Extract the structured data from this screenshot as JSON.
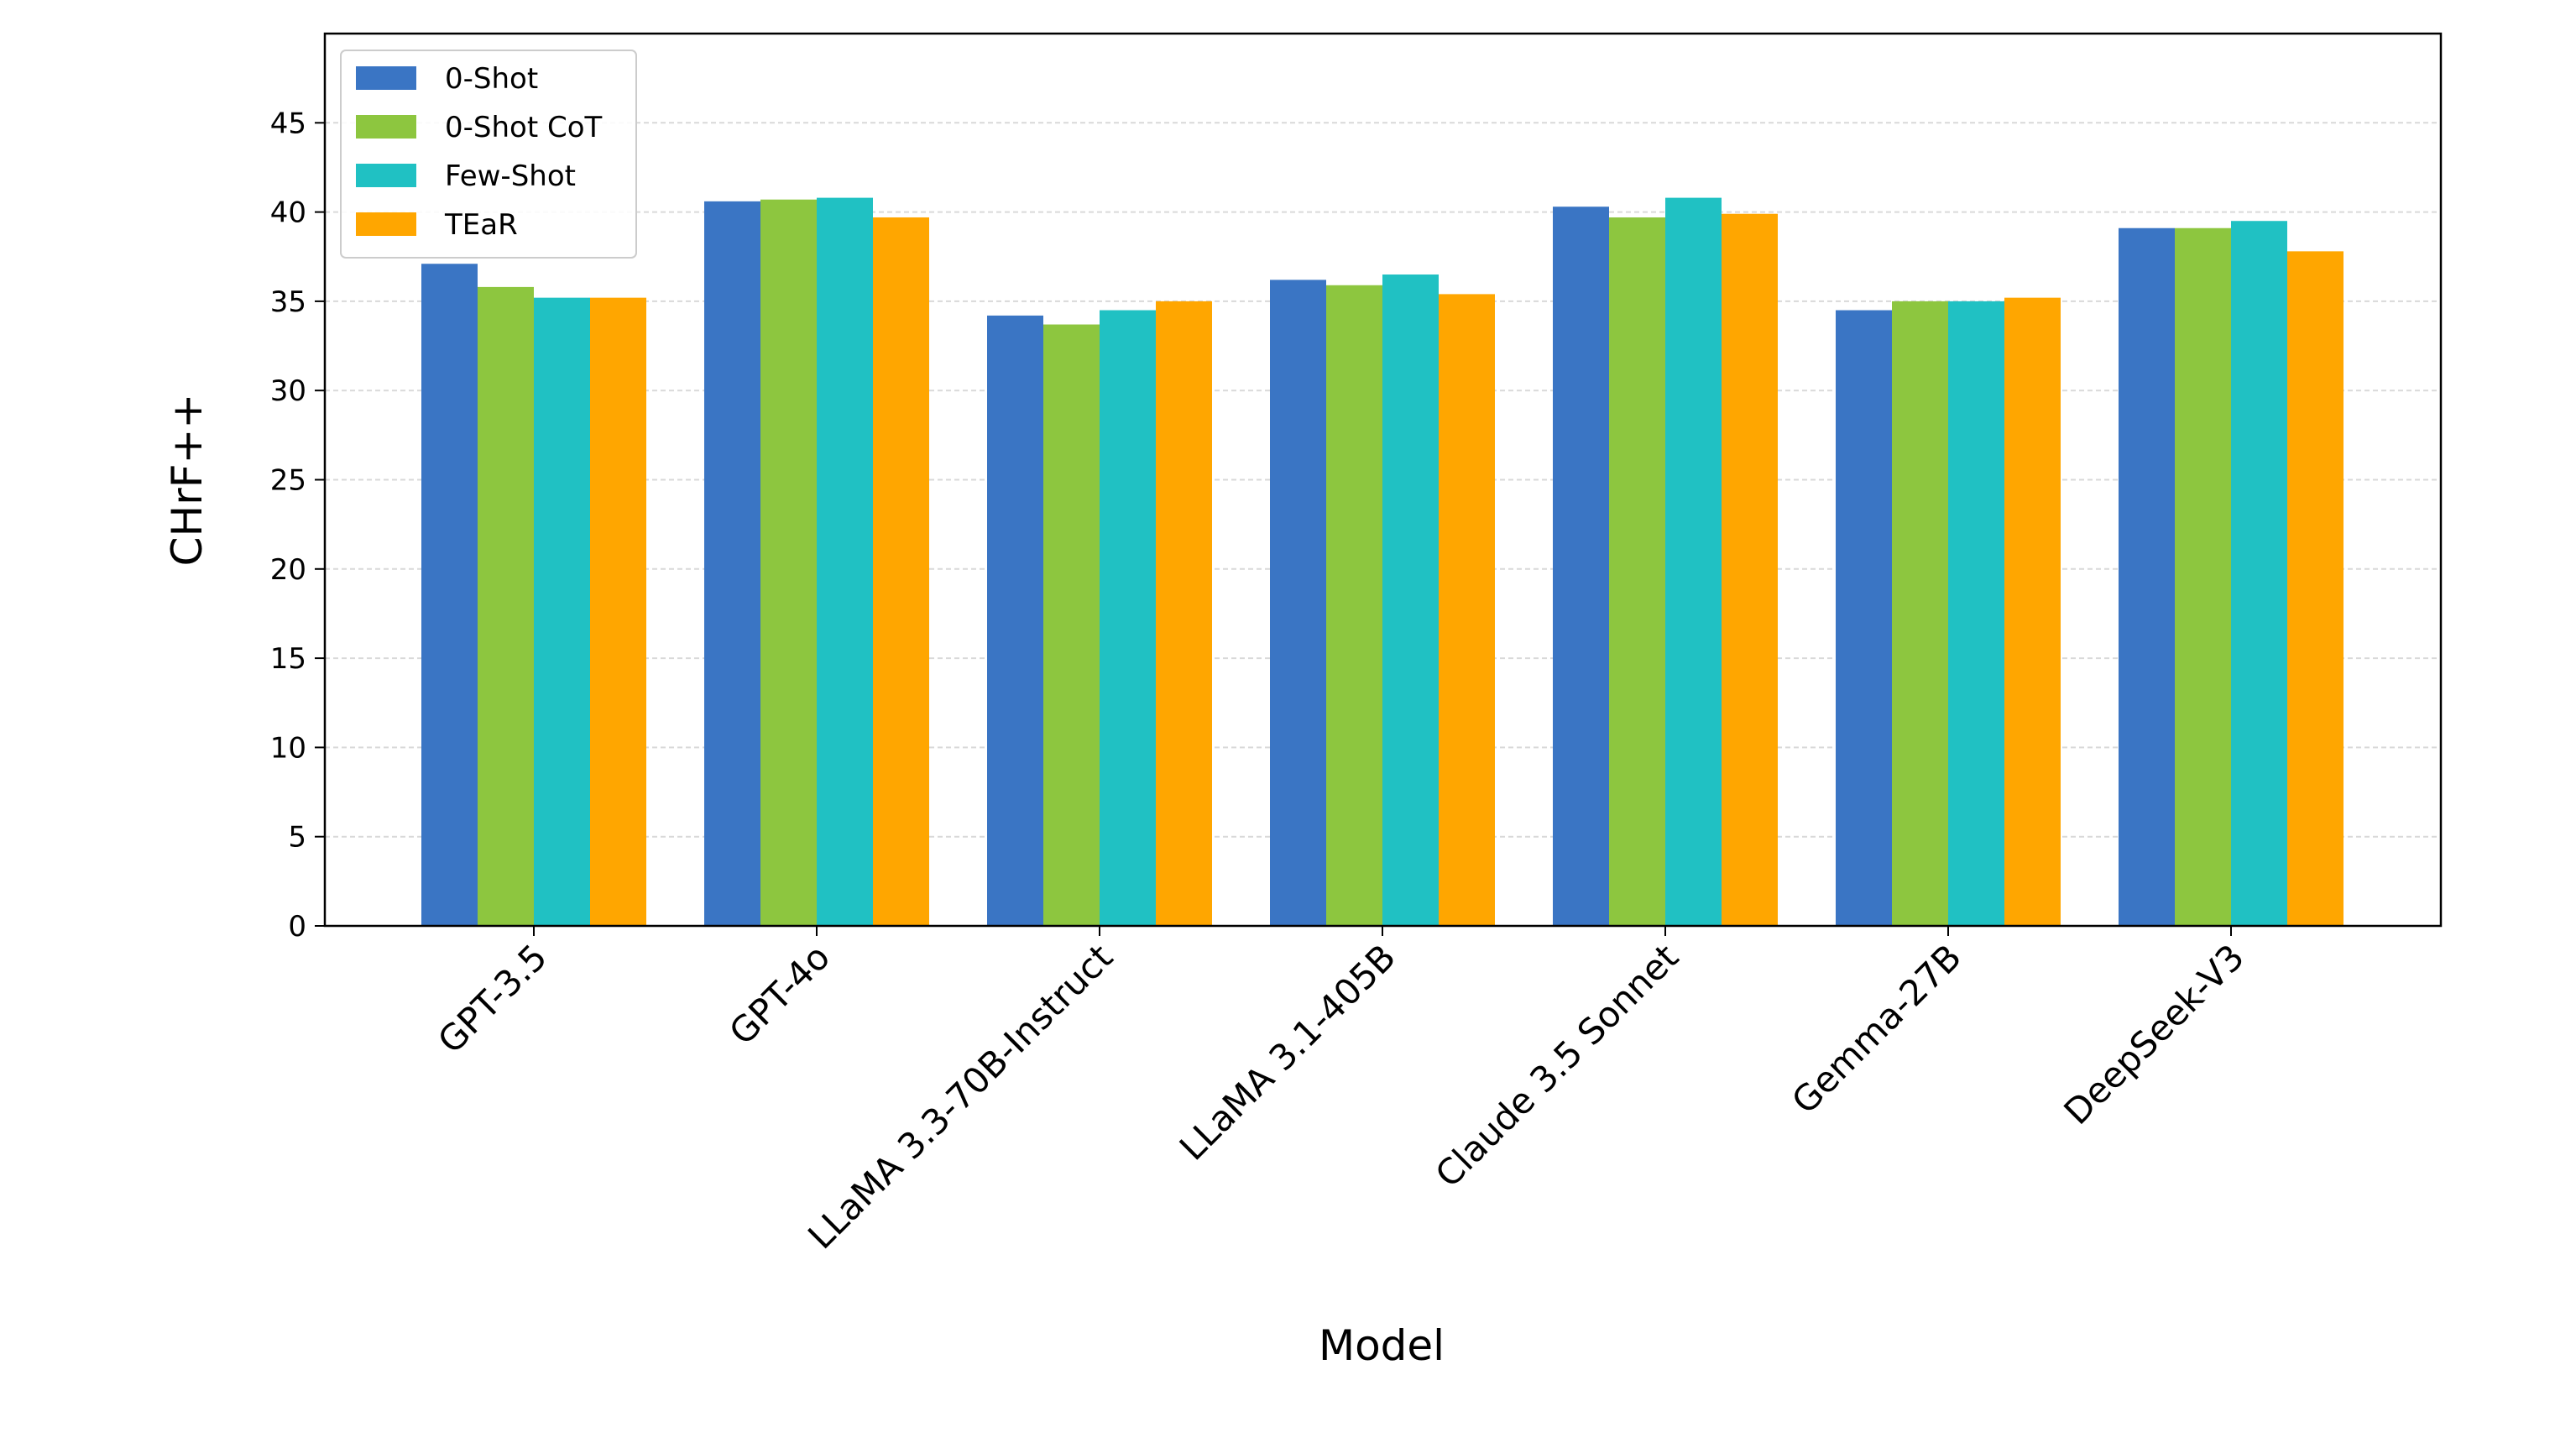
{
  "chart_data": {
    "type": "bar",
    "title": "",
    "xlabel": "Model",
    "ylabel": "CHrF++",
    "ylim": [
      0,
      50
    ],
    "yticks": [
      0,
      5,
      10,
      15,
      20,
      25,
      30,
      35,
      40,
      45
    ],
    "grid": "horizontal dashed",
    "legend_position": "top-left",
    "categories": [
      "GPT-3.5",
      "GPT-4o",
      "LLaMA 3.3-70B-Instruct",
      "LLaMA 3.1-405B",
      "Claude 3.5 Sonnet",
      "Gemma-27B",
      "DeepSeek-V3"
    ],
    "series": [
      {
        "name": "0-Shot",
        "color": "#3a75c4",
        "values": [
          37.1,
          40.6,
          34.2,
          36.2,
          40.3,
          34.5,
          39.1
        ]
      },
      {
        "name": "0-Shot CoT",
        "color": "#8dc63f",
        "values": [
          35.8,
          40.7,
          33.7,
          35.9,
          39.7,
          35.0,
          39.1
        ]
      },
      {
        "name": "Few-Shot",
        "color": "#20c1c3",
        "values": [
          35.2,
          40.8,
          34.5,
          36.5,
          40.8,
          35.0,
          39.5
        ]
      },
      {
        "name": "TEaR",
        "color": "#ffa600",
        "values": [
          35.2,
          39.7,
          35.0,
          35.4,
          39.9,
          35.2,
          37.8
        ]
      }
    ]
  }
}
